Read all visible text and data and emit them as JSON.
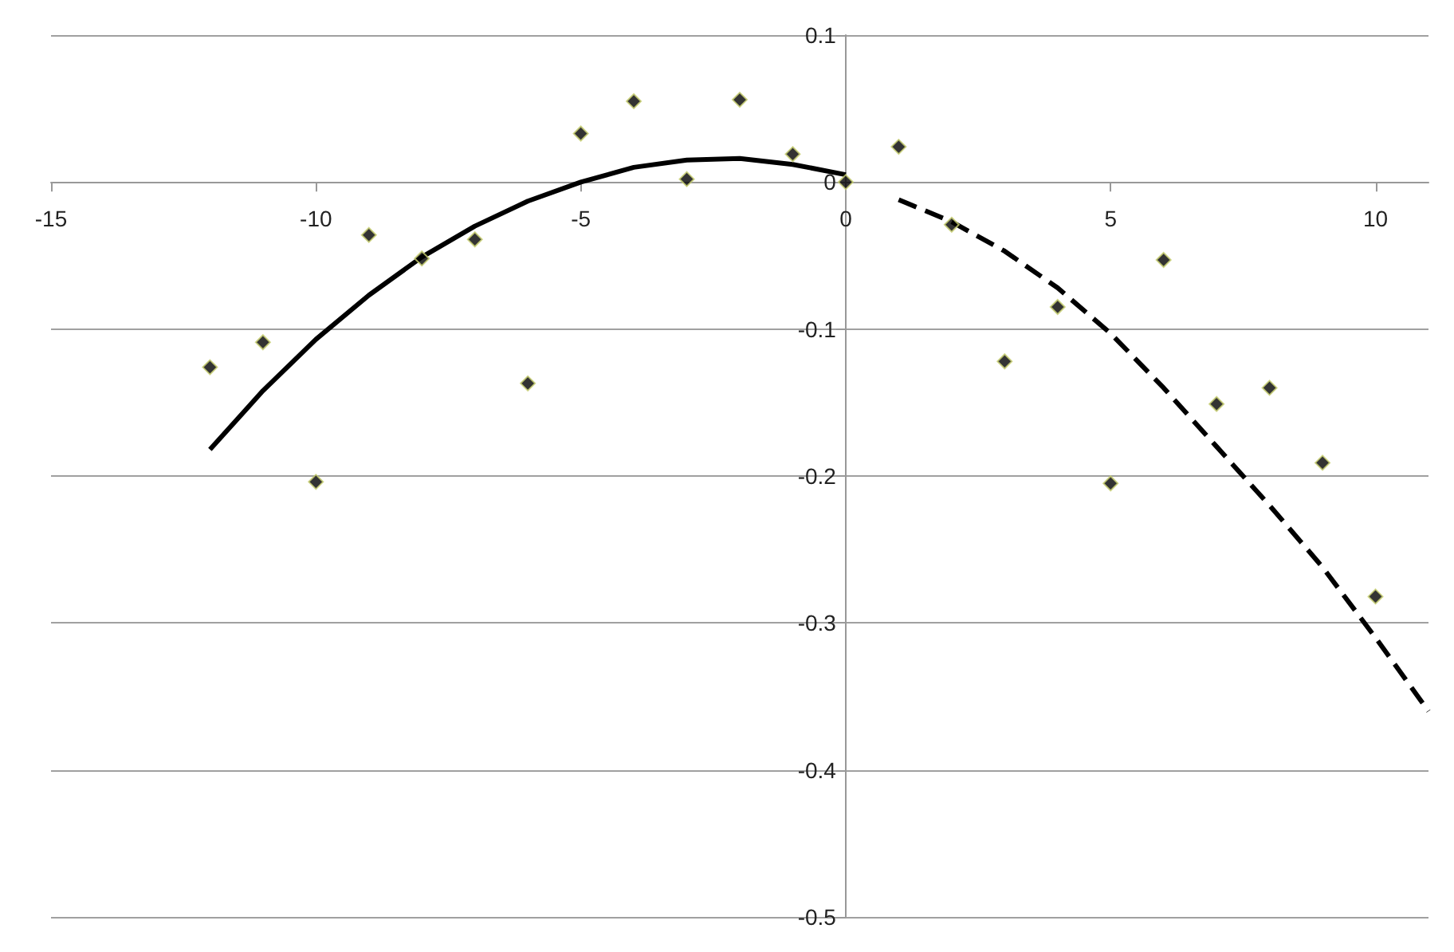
{
  "chart_data": {
    "type": "scatter",
    "xlim": [
      -15,
      11
    ],
    "xticks": [
      -15,
      -10,
      -5,
      0,
      5,
      10
    ],
    "ylim": [
      -0.5,
      0.1
    ],
    "yticks": [
      0.1,
      0,
      -0.1,
      -0.2,
      -0.3,
      -0.4,
      -0.5
    ],
    "grid": "y",
    "series": [
      {
        "type": "scatter",
        "marker": "diamond",
        "color": "#000000",
        "x": [
          -12,
          -11,
          -10,
          -9,
          -8,
          -7,
          -6,
          -5,
          -4,
          -3,
          -2,
          -1,
          0,
          1,
          2,
          3,
          4,
          5,
          6,
          7,
          8,
          9,
          10
        ],
        "values": [
          -0.126,
          -0.109,
          -0.204,
          -0.036,
          -0.052,
          -0.039,
          -0.137,
          0.033,
          0.055,
          0.002,
          0.056,
          0.019,
          0.0,
          0.024,
          -0.029,
          -0.122,
          -0.085,
          -0.205,
          -0.053,
          -0.151,
          -0.14,
          -0.191,
          -0.282
        ]
      },
      {
        "type": "line",
        "line_style": "solid",
        "marker": "none",
        "color": "#000000",
        "x": [
          -12,
          -11,
          -10,
          -9,
          -8,
          -7,
          -6,
          -5,
          -4,
          -3,
          -2,
          -1,
          0
        ],
        "values": [
          -0.182,
          -0.142,
          -0.107,
          -0.077,
          -0.051,
          -0.03,
          -0.013,
          0.0,
          0.01,
          0.015,
          0.016,
          0.012,
          0.005
        ]
      },
      {
        "type": "line",
        "line_style": "dashed",
        "marker": "none",
        "color": "#000000",
        "x": [
          1,
          2,
          3,
          4,
          5,
          6,
          7,
          8,
          9,
          10,
          11
        ],
        "values": [
          -0.012,
          -0.027,
          -0.047,
          -0.072,
          -0.103,
          -0.14,
          -0.18,
          -0.22,
          -0.262,
          -0.31,
          -0.36
        ]
      }
    ]
  }
}
